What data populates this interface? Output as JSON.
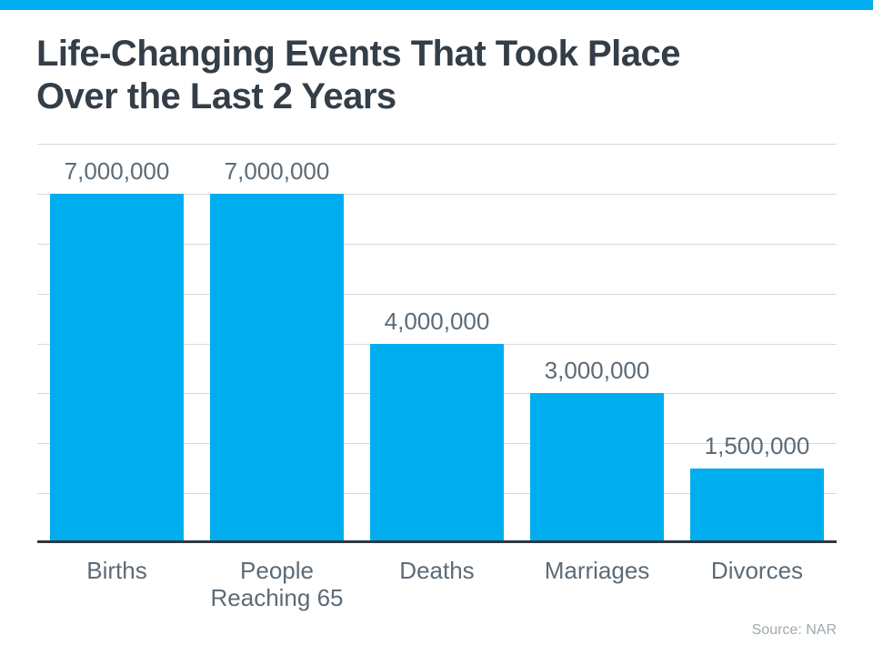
{
  "page": {
    "title_line1": "Life-Changing Events That Took Place",
    "title_line2": "Over the Last 2 Years",
    "source": "Source: NAR"
  },
  "colors": {
    "accent_blue": "#00AEEF",
    "title_text": "#333E48",
    "label_text": "#5C6B77",
    "gridline": "#D9D9D9",
    "axis_line": "#2F3840",
    "source_text": "#9FA9B0"
  },
  "chart_data": {
    "type": "bar",
    "title": "Life-Changing Events That Took Place Over the Last 2 Years",
    "categories": [
      "Births",
      "People Reaching 65",
      "Deaths",
      "Marriages",
      "Divorces"
    ],
    "values": [
      7000000,
      7000000,
      4000000,
      3000000,
      1500000
    ],
    "value_labels": [
      "7,000,000",
      "7,000,000",
      "4,000,000",
      "3,000,000",
      "1,500,000"
    ],
    "xlabel": "",
    "ylabel": "",
    "ylim": [
      0,
      8000000
    ],
    "gridline_interval": 1000000,
    "grid": true,
    "legend": false,
    "bar_color": "#00AEEF",
    "source": "Source: NAR"
  }
}
